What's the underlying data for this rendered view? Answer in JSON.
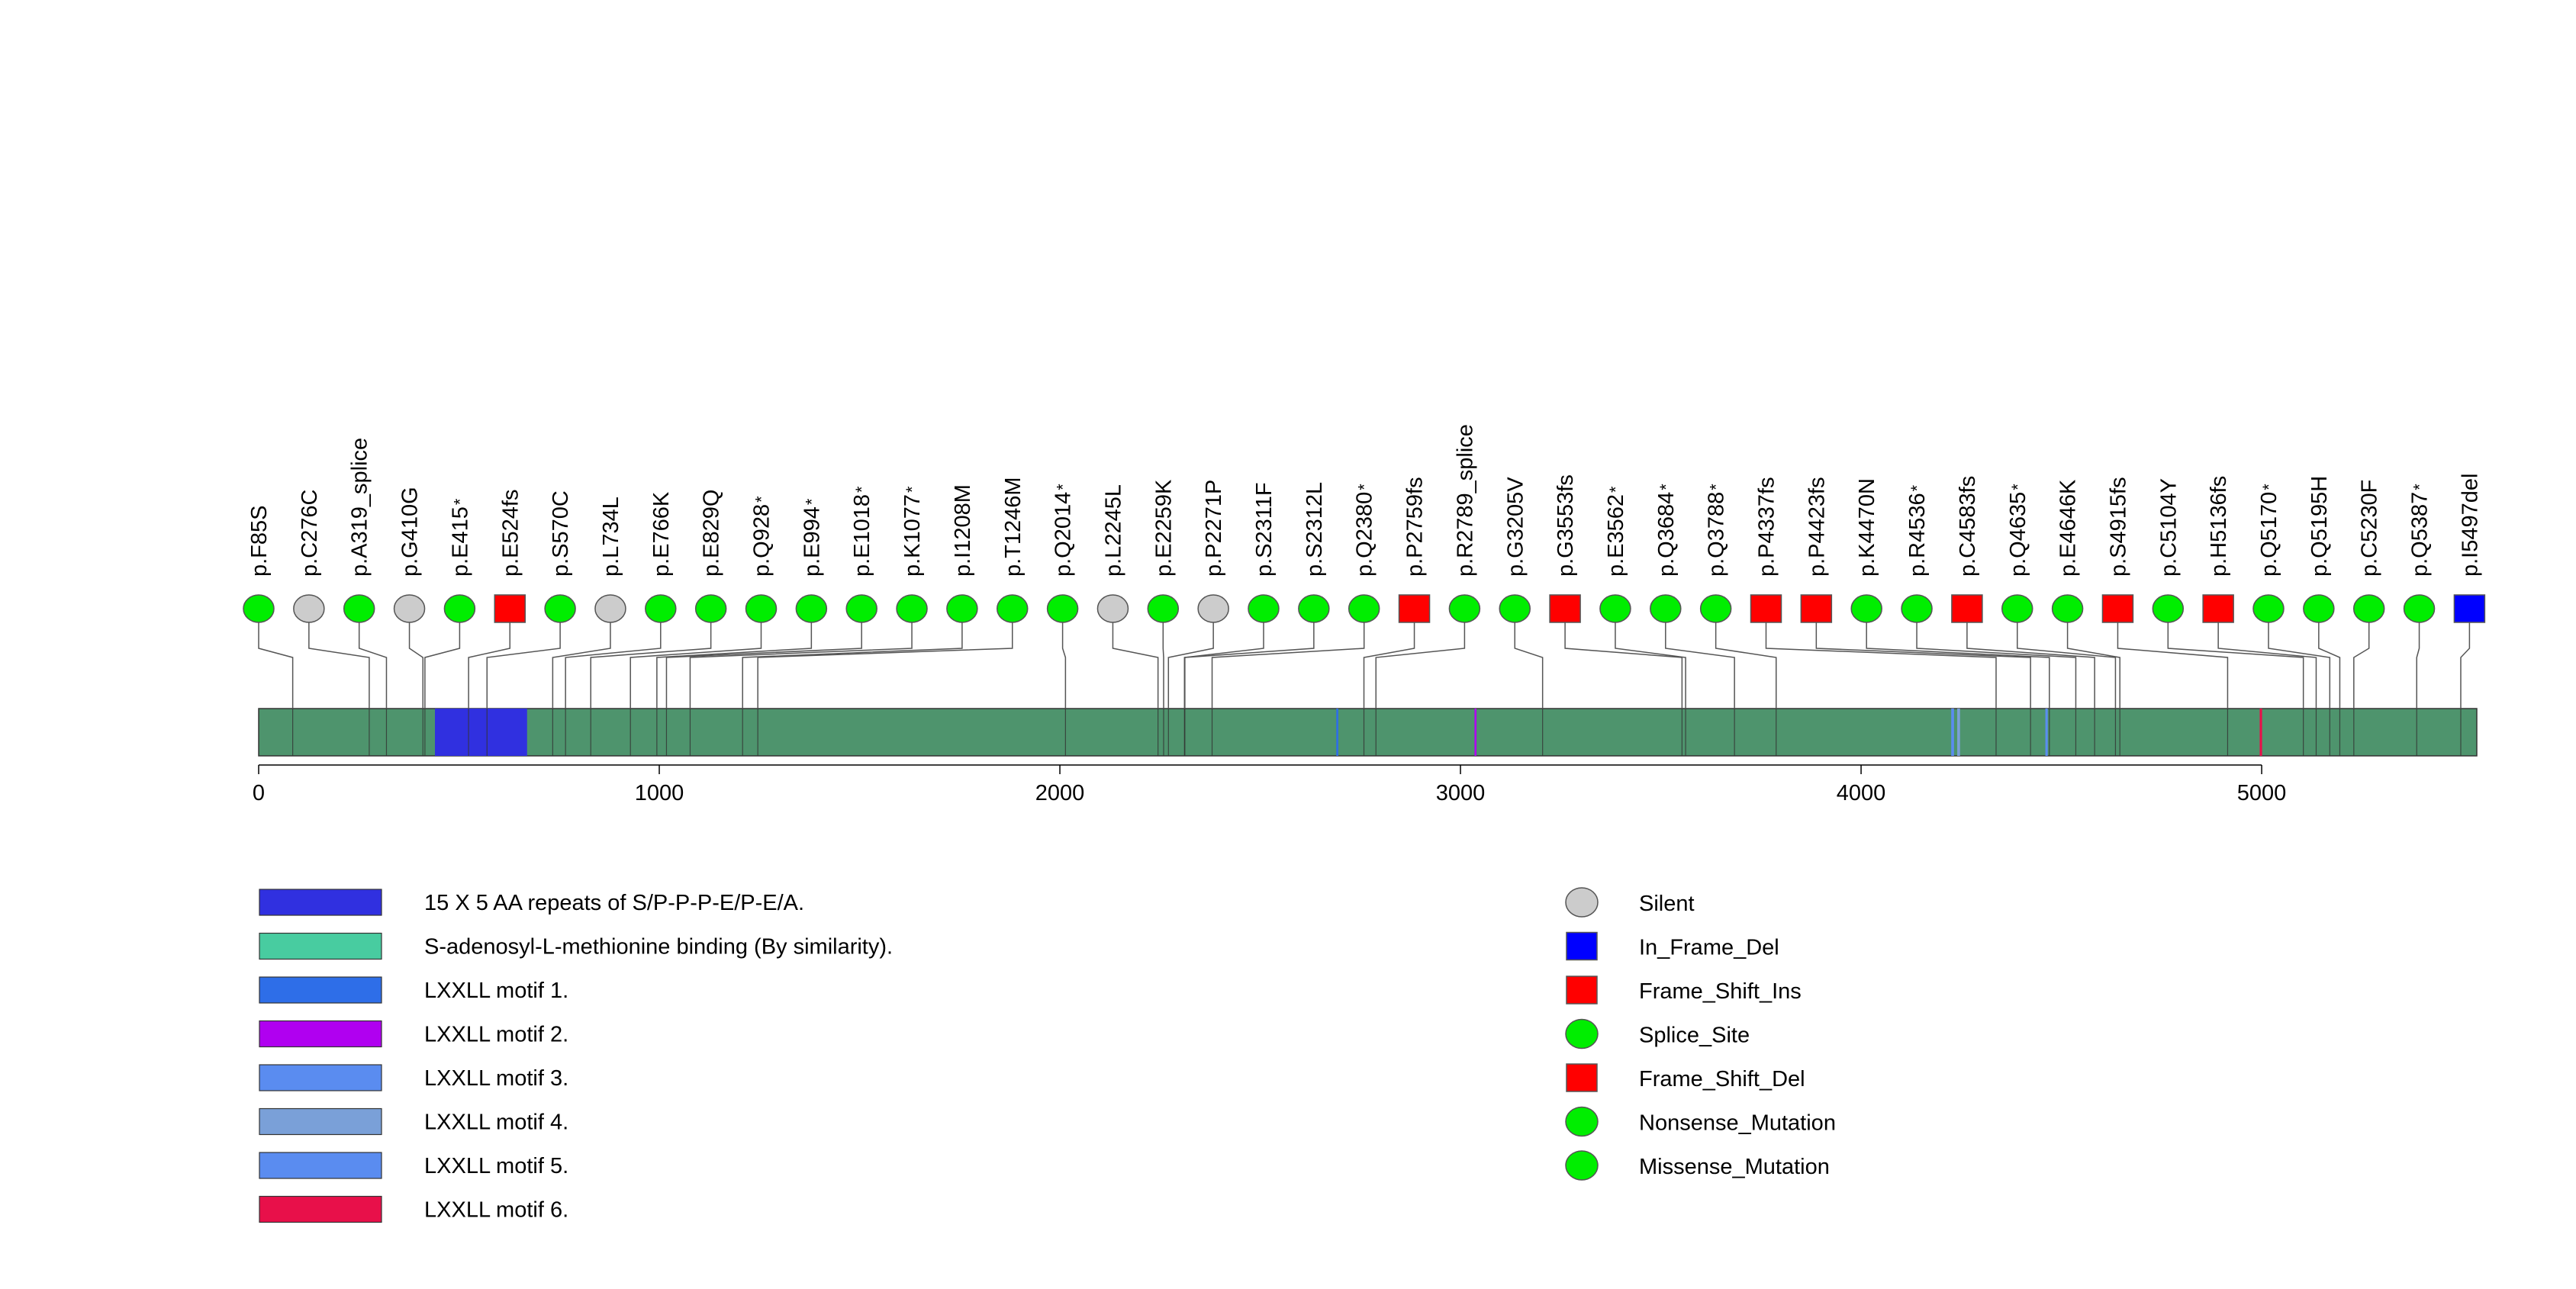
{
  "chart_data": {
    "type": "lollipop",
    "title": "",
    "protein_length": 5537,
    "axis": {
      "xlim": [
        0,
        5537
      ],
      "ticks": [
        0,
        1000,
        2000,
        3000,
        4000,
        5000
      ],
      "tick_labels": [
        "0",
        "1000",
        "2000",
        "3000",
        "4000",
        "5000"
      ]
    },
    "domains": [
      {
        "name": "15 X 5 AA repeats of S/P-P-P-E/P-E/A.",
        "color": "#3030e0",
        "ranges": [
          [
            440,
            670
          ]
        ]
      },
      {
        "name": "S-adenosyl-L-methionine binding (By similarity).",
        "color": "#48cca0",
        "ranges": []
      },
      {
        "name": "LXXLL motif 1.",
        "color": "#2e6ee8",
        "ranges": [
          [
            2690,
            2695
          ]
        ]
      },
      {
        "name": "LXXLL motif 2.",
        "color": "#b000f0",
        "ranges": [
          [
            3035,
            3040
          ]
        ]
      },
      {
        "name": "LXXLL motif 3.",
        "color": "#5a8cf0",
        "ranges": [
          [
            4225,
            4232
          ]
        ]
      },
      {
        "name": "LXXLL motif 4.",
        "color": "#7aa0d8",
        "ranges": [
          [
            4240,
            4247
          ]
        ]
      },
      {
        "name": "LXXLL motif 5.",
        "color": "#5a8cf0",
        "ranges": [
          [
            4460,
            4466
          ]
        ]
      },
      {
        "name": "LXXLL motif 6.",
        "color": "#e8104a",
        "ranges": [
          [
            4995,
            5001
          ]
        ]
      }
    ],
    "mutation_types": [
      {
        "name": "Silent",
        "shape": "circle",
        "color": "#cccccc"
      },
      {
        "name": "In_Frame_Del",
        "shape": "square",
        "color": "#0000ff"
      },
      {
        "name": "Frame_Shift_Ins",
        "shape": "square",
        "color": "#ff0000"
      },
      {
        "name": "Splice_Site",
        "shape": "circle",
        "color": "#00ee00"
      },
      {
        "name": "Frame_Shift_Del",
        "shape": "square",
        "color": "#ff0000"
      },
      {
        "name": "Nonsense_Mutation",
        "shape": "circle",
        "color": "#00ee00"
      },
      {
        "name": "Missense_Mutation",
        "shape": "circle",
        "color": "#00ee00"
      }
    ],
    "mutations": [
      {
        "label": "p.F85S",
        "position": 85,
        "type": "Missense_Mutation",
        "star": false
      },
      {
        "label": "p.C276C",
        "position": 276,
        "type": "Silent",
        "star": false
      },
      {
        "label": "p.A319_splice",
        "position": 319,
        "type": "Splice_Site",
        "star": false
      },
      {
        "label": "p.G410G",
        "position": 410,
        "type": "Silent",
        "star": false
      },
      {
        "label": "p.E415",
        "position": 415,
        "type": "Nonsense_Mutation",
        "star": true
      },
      {
        "label": "p.E524fs",
        "position": 524,
        "type": "Frame_Shift_Del",
        "star": false
      },
      {
        "label": "p.S570C",
        "position": 570,
        "type": "Missense_Mutation",
        "star": false
      },
      {
        "label": "p.L734L",
        "position": 734,
        "type": "Silent",
        "star": false
      },
      {
        "label": "p.E766K",
        "position": 766,
        "type": "Missense_Mutation",
        "star": false
      },
      {
        "label": "p.E829Q",
        "position": 829,
        "type": "Missense_Mutation",
        "star": false
      },
      {
        "label": "p.Q928",
        "position": 928,
        "type": "Nonsense_Mutation",
        "star": true
      },
      {
        "label": "p.E994",
        "position": 994,
        "type": "Nonsense_Mutation",
        "star": true
      },
      {
        "label": "p.E1018",
        "position": 1018,
        "type": "Nonsense_Mutation",
        "star": true
      },
      {
        "label": "p.K1077",
        "position": 1077,
        "type": "Nonsense_Mutation",
        "star": true
      },
      {
        "label": "p.I1208M",
        "position": 1208,
        "type": "Missense_Mutation",
        "star": false
      },
      {
        "label": "p.T1246M",
        "position": 1246,
        "type": "Missense_Mutation",
        "star": false
      },
      {
        "label": "p.Q2014",
        "position": 2014,
        "type": "Nonsense_Mutation",
        "star": true
      },
      {
        "label": "p.L2245L",
        "position": 2245,
        "type": "Silent",
        "star": false
      },
      {
        "label": "p.E2259K",
        "position": 2259,
        "type": "Missense_Mutation",
        "star": false
      },
      {
        "label": "p.P2271P",
        "position": 2271,
        "type": "Silent",
        "star": false
      },
      {
        "label": "p.S2311F",
        "position": 2311,
        "type": "Missense_Mutation",
        "star": false
      },
      {
        "label": "p.S2312L",
        "position": 2312,
        "type": "Missense_Mutation",
        "star": false
      },
      {
        "label": "p.Q2380",
        "position": 2380,
        "type": "Nonsense_Mutation",
        "star": true
      },
      {
        "label": "p.P2759fs",
        "position": 2759,
        "type": "Frame_Shift_Ins",
        "star": false
      },
      {
        "label": "p.R2789_splice",
        "position": 2789,
        "type": "Splice_Site",
        "star": false
      },
      {
        "label": "p.G3205V",
        "position": 3205,
        "type": "Missense_Mutation",
        "star": false
      },
      {
        "label": "p.G3553fs",
        "position": 3553,
        "type": "Frame_Shift_Del",
        "star": false
      },
      {
        "label": "p.E3562",
        "position": 3562,
        "type": "Nonsense_Mutation",
        "star": true
      },
      {
        "label": "p.Q3684",
        "position": 3684,
        "type": "Nonsense_Mutation",
        "star": true
      },
      {
        "label": "p.Q3788",
        "position": 3788,
        "type": "Nonsense_Mutation",
        "star": true
      },
      {
        "label": "p.P4337fs",
        "position": 4337,
        "type": "Frame_Shift_Del",
        "star": false
      },
      {
        "label": "p.P4423fs",
        "position": 4423,
        "type": "Frame_Shift_Del",
        "star": false
      },
      {
        "label": "p.K4470N",
        "position": 4470,
        "type": "Missense_Mutation",
        "star": false
      },
      {
        "label": "p.R4536",
        "position": 4536,
        "type": "Nonsense_Mutation",
        "star": true
      },
      {
        "label": "p.C4583fs",
        "position": 4583,
        "type": "Frame_Shift_Del",
        "star": false
      },
      {
        "label": "p.Q4635",
        "position": 4635,
        "type": "Nonsense_Mutation",
        "star": true
      },
      {
        "label": "p.E4646K",
        "position": 4646,
        "type": "Missense_Mutation",
        "star": false
      },
      {
        "label": "p.S4915fs",
        "position": 4915,
        "type": "Frame_Shift_Del",
        "star": false
      },
      {
        "label": "p.C5104Y",
        "position": 5104,
        "type": "Missense_Mutation",
        "star": false
      },
      {
        "label": "p.H5136fs",
        "position": 5136,
        "type": "Frame_Shift_Del",
        "star": false
      },
      {
        "label": "p.Q5170",
        "position": 5170,
        "type": "Nonsense_Mutation",
        "star": true
      },
      {
        "label": "p.Q5195H",
        "position": 5195,
        "type": "Missense_Mutation",
        "star": false
      },
      {
        "label": "p.C5230F",
        "position": 5230,
        "type": "Missense_Mutation",
        "star": false
      },
      {
        "label": "p.Q5387",
        "position": 5387,
        "type": "Nonsense_Mutation",
        "star": true
      },
      {
        "label": "p.I5497del",
        "position": 5497,
        "type": "In_Frame_Del",
        "star": false
      }
    ],
    "star_glyph": "*",
    "colors": {
      "protein_bar": "#4e946d",
      "stem": "#555555"
    }
  }
}
